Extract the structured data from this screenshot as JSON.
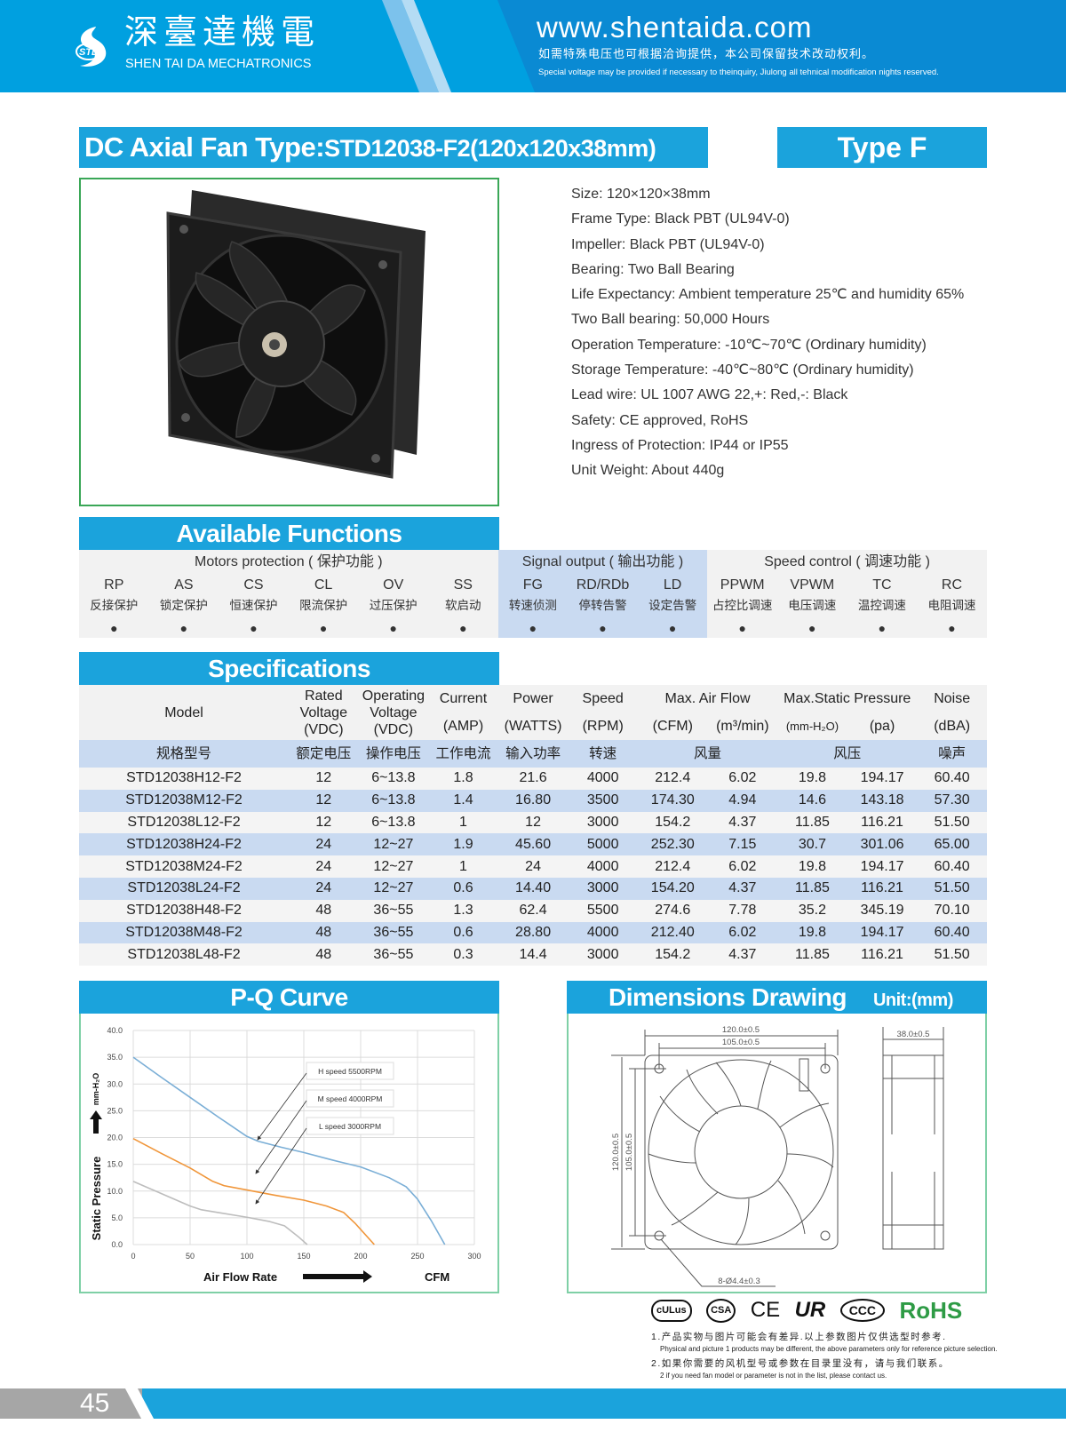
{
  "header": {
    "brand_cn": "深臺達機電",
    "brand_en": "SHEN TAI DA MECHATRONICS",
    "logo_text": "STD",
    "url": "www.shentaida.com",
    "notice_cn": "如需特殊电压也可根据洽询提供，本公司保留技术改动权利。",
    "notice_en": "Special voltage may be provided if necessary to theinquiry, Jiulong all tehnical modification nights reserved."
  },
  "title": {
    "prefix": "DC Axial Fan  Type:",
    "model": "STD12038-F2(120x120x38mm)",
    "type_label": "Type  F"
  },
  "product_specs": [
    "Size: 120×120×38mm",
    "Frame Type: Black PBT (UL94V-0)",
    "Impeller: Black PBT (UL94V-0)",
    "Bearing: Two Ball Bearing",
    "Life Expectancy: Ambient temperature 25℃ and humidity 65%",
    "Two Ball bearing: 50,000 Hours",
    "Operation Temperature: -10℃~70℃ (Ordinary humidity)",
    "Storage Temperature: -40℃~80℃ (Ordinary humidity)",
    "Lead wire: UL 1007 AWG 22,+: Red,-: Black",
    "Safety: CE approved, RoHS",
    "Ingress of Protection: IP44 or IP55",
    "Unit Weight: About 440g"
  ],
  "functions": {
    "title": "Available Functions",
    "bullet": "●",
    "groups": [
      {
        "title": "Motors protection ( 保护功能 )",
        "items": [
          {
            "code": "RP",
            "cn": "反接保护"
          },
          {
            "code": "AS",
            "cn": "锁定保护"
          },
          {
            "code": "CS",
            "cn": "恒速保护"
          },
          {
            "code": "CL",
            "cn": "限流保护"
          },
          {
            "code": "OV",
            "cn": "过压保护"
          },
          {
            "code": "SS",
            "cn": "软启动"
          }
        ]
      },
      {
        "title": "Signal output ( 输出功能 )",
        "items": [
          {
            "code": "FG",
            "cn": "转速侦测"
          },
          {
            "code": "RD/RDb",
            "cn": "停转告警"
          },
          {
            "code": "LD",
            "cn": "设定告警"
          }
        ]
      },
      {
        "title": "Speed control ( 调速功能 )",
        "items": [
          {
            "code": "PPWM",
            "cn": "占控比调速"
          },
          {
            "code": "VPWM",
            "cn": "电压调速"
          },
          {
            "code": "TC",
            "cn": "温控调速"
          },
          {
            "code": "RC",
            "cn": "电阻调速"
          }
        ]
      }
    ],
    "highlight_color": "#c9daf1"
  },
  "specifications": {
    "title": "Specifications",
    "headers": {
      "model": "Model",
      "rated": [
        "Rated",
        "Voltage",
        "(VDC)"
      ],
      "operating": [
        "Operating",
        "Voltage",
        "(VDC)"
      ],
      "current": [
        "Current",
        "(AMP)"
      ],
      "power": [
        "Power",
        "(WATTS)"
      ],
      "speed": [
        "Speed",
        "(RPM)"
      ],
      "airflow": "Max. Air Flow",
      "airflow_units": [
        "(CFM)",
        "(m³/min)"
      ],
      "pressure": "Max.Static Pressure",
      "pressure_units": [
        "(mm-H₂O)",
        "(pa)"
      ],
      "noise": [
        "Noise",
        "(dBA)"
      ]
    },
    "headers_cn": [
      "规格型号",
      "额定电压",
      "操作电压",
      "工作电流",
      "输入功率",
      "转速",
      "风量",
      "风压",
      "噪声"
    ],
    "rows": [
      [
        "STD12038H12-F2",
        "12",
        "6~13.8",
        "1.8",
        "21.6",
        "4000",
        "212.4",
        "6.02",
        "19.8",
        "194.17",
        "60.40"
      ],
      [
        "STD12038M12-F2",
        "12",
        "6~13.8",
        "1.4",
        "16.80",
        "3500",
        "174.30",
        "4.94",
        "14.6",
        "143.18",
        "57.30"
      ],
      [
        "STD12038L12-F2",
        "12",
        "6~13.8",
        "1",
        "12",
        "3000",
        "154.2",
        "4.37",
        "11.85",
        "116.21",
        "51.50"
      ],
      [
        "STD12038H24-F2",
        "24",
        "12~27",
        "1.9",
        "45.60",
        "5000",
        "252.30",
        "7.15",
        "30.7",
        "301.06",
        "65.00"
      ],
      [
        "STD12038M24-F2",
        "24",
        "12~27",
        "1",
        "24",
        "4000",
        "212.4",
        "6.02",
        "19.8",
        "194.17",
        "60.40"
      ],
      [
        "STD12038L24-F2",
        "24",
        "12~27",
        "0.6",
        "14.40",
        "3000",
        "154.20",
        "4.37",
        "11.85",
        "116.21",
        "51.50"
      ],
      [
        "STD12038H48-F2",
        "48",
        "36~55",
        "1.3",
        "62.4",
        "5500",
        "274.6",
        "7.78",
        "35.2",
        "345.19",
        "70.10"
      ],
      [
        "STD12038M48-F2",
        "48",
        "36~55",
        "0.6",
        "28.80",
        "4000",
        "212.40",
        "6.02",
        "19.8",
        "194.17",
        "60.40"
      ],
      [
        "STD12038L48-F2",
        "48",
        "36~55",
        "0.3",
        "14.4",
        "3000",
        "154.2",
        "4.37",
        "11.85",
        "116.21",
        "51.50"
      ]
    ]
  },
  "pq_curve": {
    "title": "P-Q Curve"
  },
  "chart_data": {
    "type": "line",
    "title": "P-Q Curve",
    "xlabel": "Air   Flow   Rate",
    "xunit": "CFM",
    "ylabel": "Static   Pressure",
    "yunit": "mm-H₂O",
    "xlim": [
      0,
      300
    ],
    "ylim": [
      0,
      40
    ],
    "xticks": [
      "0",
      "50",
      "100",
      "150",
      "200",
      "250",
      "300"
    ],
    "yticks": [
      "0.0",
      "5.0",
      "10.0",
      "15.0",
      "20.0",
      "25.0",
      "30.0",
      "35.0",
      "40.0"
    ],
    "grid": true,
    "series": [
      {
        "name": "H  speed  5500RPM",
        "color": "#7aaed6",
        "points": [
          [
            0,
            35
          ],
          [
            25,
            31.2
          ],
          [
            50,
            27.5
          ],
          [
            75,
            23.8
          ],
          [
            100,
            20.2
          ],
          [
            110,
            19.3
          ],
          [
            130,
            18.2
          ],
          [
            150,
            17.2
          ],
          [
            175,
            15.8
          ],
          [
            200,
            14.5
          ],
          [
            225,
            12.5
          ],
          [
            240,
            10.8
          ],
          [
            250,
            8.5
          ],
          [
            262,
            4.5
          ],
          [
            274,
            0
          ]
        ]
      },
      {
        "name": "M  speed  4000RPM",
        "color": "#f0963a",
        "points": [
          [
            0,
            19.8
          ],
          [
            25,
            17
          ],
          [
            50,
            14.3
          ],
          [
            70,
            11.8
          ],
          [
            80,
            11
          ],
          [
            100,
            10.2
          ],
          [
            125,
            9.2
          ],
          [
            150,
            8.3
          ],
          [
            170,
            7.2
          ],
          [
            185,
            6
          ],
          [
            195,
            4
          ],
          [
            212,
            0
          ]
        ]
      },
      {
        "name": "L  speed  3000RPM",
        "color": "#bdbdbd",
        "points": [
          [
            0,
            11.8
          ],
          [
            25,
            9.5
          ],
          [
            50,
            7.2
          ],
          [
            60,
            6.5
          ],
          [
            80,
            5.8
          ],
          [
            100,
            5.1
          ],
          [
            120,
            4.3
          ],
          [
            133,
            3.5
          ],
          [
            145,
            1.5
          ],
          [
            153,
            0
          ]
        ]
      }
    ]
  },
  "dimensions": {
    "title": "Dimensions Drawing",
    "unit": "Unit:(mm)",
    "width_outer": "120.0±0.5",
    "width_inner": "105.0±0.5",
    "height_outer": "120.0±0.5",
    "height_inner": "105.0±0.5",
    "depth": "38.0±0.5",
    "holes": "8-Ø4.4±0.3"
  },
  "certifications": [
    "cULus",
    "CSA",
    "CE",
    "UR",
    "CCC",
    "RoHS"
  ],
  "rohs_color": "#2e9b45",
  "notes": [
    {
      "cn": "1.产品实物与图片可能会有差异.以上参数图片仅供选型时参考.",
      "en": "Physical and picture 1 products may be different, the above parameters only for reference picture selection."
    },
    {
      "cn": "2.如果你需要的风机型号或参数在目录里没有，请与我们联系。",
      "en": "2 if you need fan model or parameter is not in the list, please contact us."
    }
  ],
  "page_number": "45"
}
